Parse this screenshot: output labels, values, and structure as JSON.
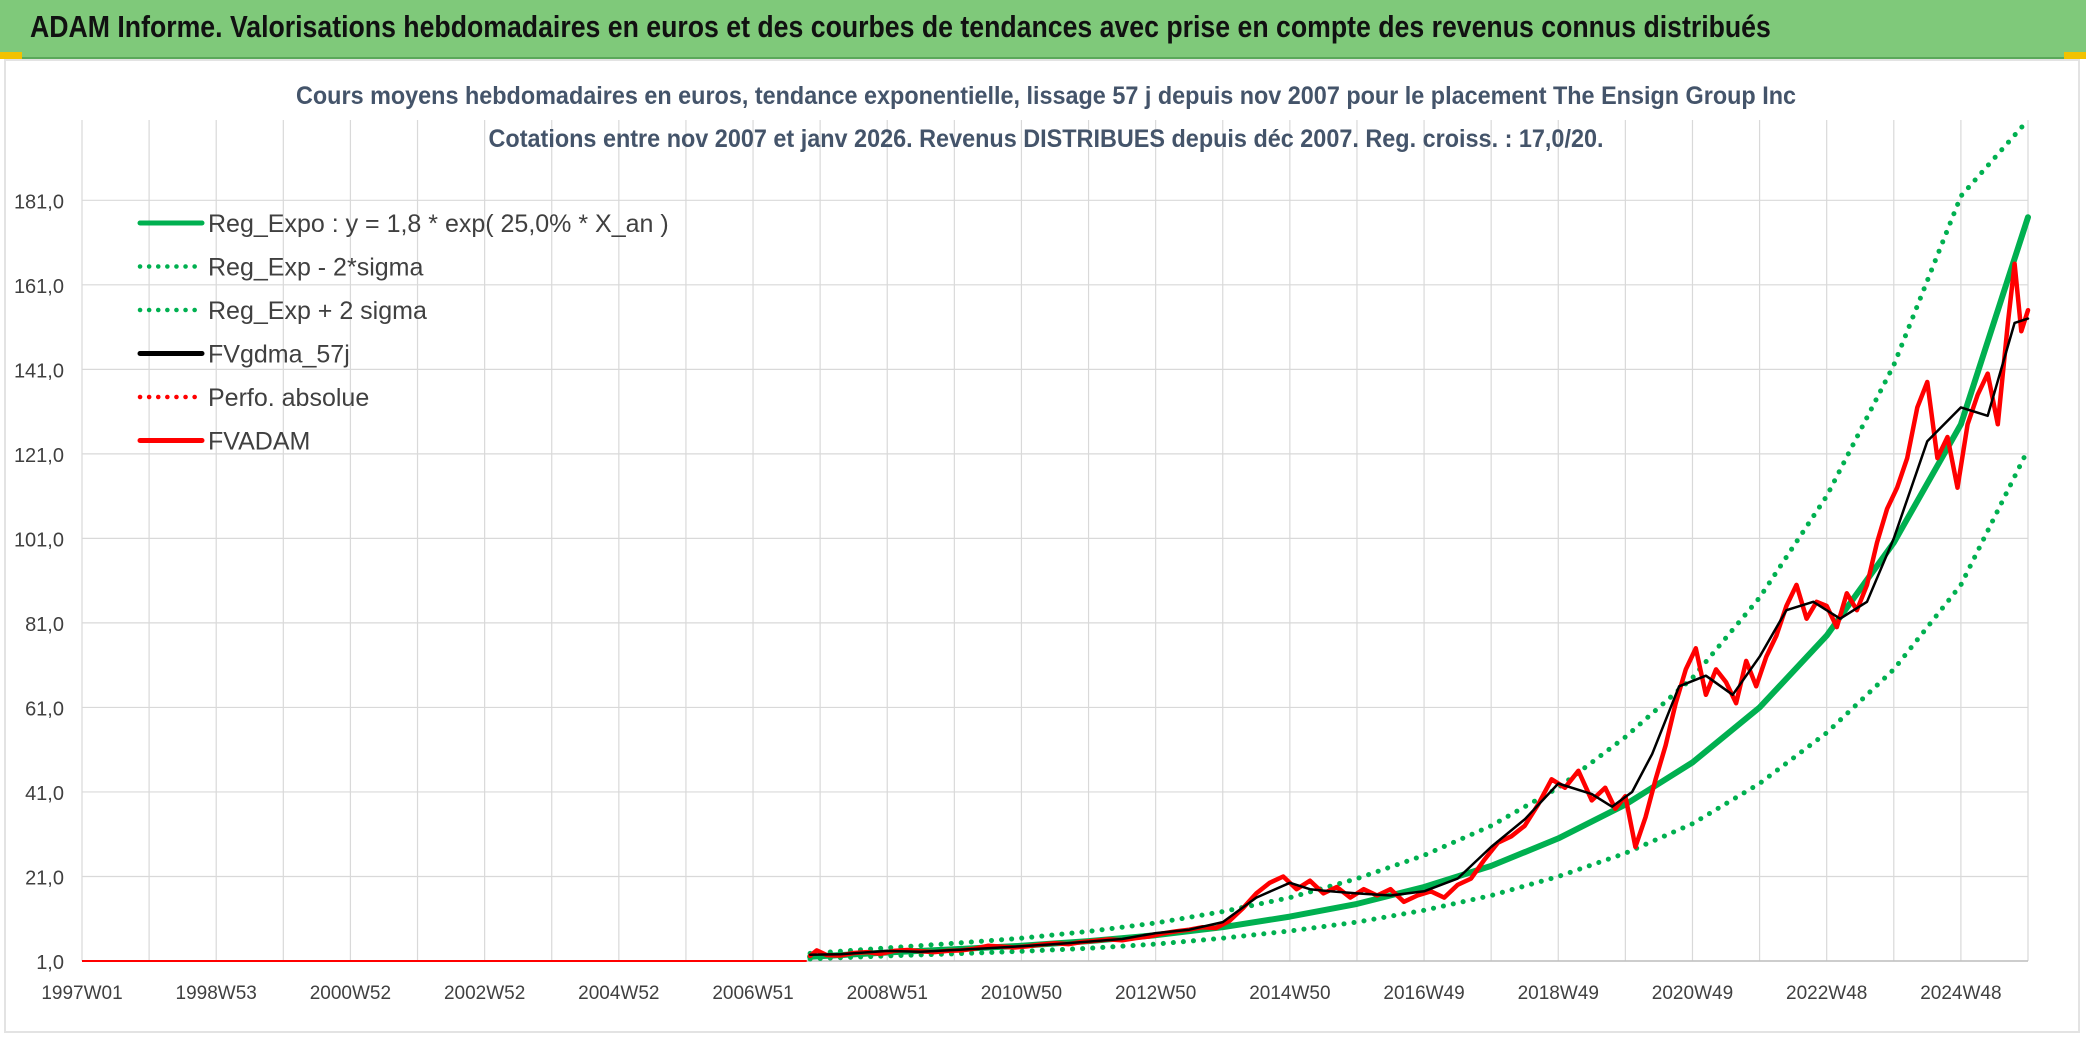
{
  "header": {
    "title": "ADAM Informe. Valorisations hebdomadaires en euros et des courbes de tendances avec prise en compte des revenus connus distribués"
  },
  "colors": {
    "banner_bg": "#7fc97a",
    "regression": "#00b050",
    "smoothed": "#000000",
    "adam": "#ff0000",
    "grid": "#d9d9d9"
  },
  "chart_data": {
    "type": "line",
    "title": "Cours moyens hebdomadaires en euros, tendance exponentielle, lissage 57 j depuis nov 2007 pour le placement The Ensign Group Inc",
    "subtitle": "Cotations entre nov 2007 et janv 2026. Revenus DISTRIBUES depuis déc 2007. Reg. croiss. : 17,0/20.",
    "xlabel": "",
    "ylabel": "",
    "x_tick_labels": [
      "1997W01",
      "1998W53",
      "2000W52",
      "2002W52",
      "2004W52",
      "2006W51",
      "2008W51",
      "2010W50",
      "2012W50",
      "2014W50",
      "2016W49",
      "2018W49",
      "2020W49",
      "2022W48",
      "2024W48"
    ],
    "x_range": [
      1997.0,
      2026.0
    ],
    "y_ticks": [
      1,
      21,
      41,
      61,
      81,
      101,
      121,
      141,
      161,
      181
    ],
    "y_tick_labels": [
      "1,0",
      "21,0",
      "41,0",
      "61,0",
      "81,0",
      "101,0",
      "121,0",
      "141,0",
      "161,0",
      "181,0"
    ],
    "ylim": [
      1,
      200
    ],
    "grid": true,
    "legend_position": "top-left",
    "legend": [
      {
        "label": "Reg_Expo : y = 1,8 * exp( 25,0% *  X_an )",
        "color": "#00b050",
        "style": "solid"
      },
      {
        "label": "Reg_Exp - 2*sigma",
        "color": "#00b050",
        "style": "dotted"
      },
      {
        "label": "Reg_Exp + 2 sigma",
        "color": "#00b050",
        "style": "dotted"
      },
      {
        "label": "FVgdma_57j",
        "color": "#000000",
        "style": "solid"
      },
      {
        "label": "Perfo. absolue",
        "color": "#ff0000",
        "style": "dotted"
      },
      {
        "label": "FVADAM",
        "color": "#ff0000",
        "style": "solid"
      }
    ],
    "series": [
      {
        "name": "Reg_Expo : y = 1,8 * exp( 25,0% *  X_an )",
        "style": "solid",
        "color": "#00b050",
        "x": [
          2007.85,
          2009,
          2010,
          2011,
          2012,
          2013,
          2014,
          2015,
          2016,
          2017,
          2018,
          2019,
          2020,
          2021,
          2022,
          2023,
          2024,
          2025,
          2026.0
        ],
        "values": [
          2.0,
          3.0,
          3.8,
          4.6,
          5.7,
          7.1,
          9.0,
          11.5,
          14.5,
          18.5,
          23.5,
          30,
          38,
          48,
          61,
          78,
          100,
          128,
          177
        ]
      },
      {
        "name": "Reg_Exp - 2*sigma",
        "style": "dotted",
        "color": "#00b050",
        "x": [
          2007.85,
          2009,
          2010,
          2011,
          2012,
          2013,
          2014,
          2015,
          2016,
          2017,
          2018,
          2019,
          2020,
          2021,
          2022,
          2023,
          2024,
          2025,
          2026.0
        ],
        "values": [
          1.5,
          2.2,
          2.7,
          3.3,
          4.0,
          5.0,
          6.4,
          8.1,
          10.2,
          13.0,
          16.5,
          21,
          26.5,
          33.5,
          43,
          55,
          70,
          90,
          122
        ]
      },
      {
        "name": "Reg_Exp + 2 sigma",
        "style": "dotted",
        "color": "#00b050",
        "x": [
          2007.85,
          2009,
          2010,
          2011,
          2012,
          2013,
          2014,
          2015,
          2016,
          2017,
          2018,
          2019,
          2020,
          2021,
          2022,
          2023,
          2024,
          2025,
          2026.0
        ],
        "values": [
          2.8,
          4.1,
          5.2,
          6.4,
          8.0,
          10.0,
          12.7,
          16.0,
          20.5,
          26,
          33,
          42,
          54,
          68,
          87,
          111,
          142,
          182,
          200
        ]
      },
      {
        "name": "FVgdma_57j",
        "style": "solid",
        "color": "#000000",
        "x": [
          2007.85,
          2008.3,
          2009,
          2009.5,
          2010,
          2010.5,
          2011,
          2011.5,
          2012,
          2012.5,
          2013,
          2013.5,
          2014,
          2014.5,
          2015,
          2015.3,
          2015.6,
          2016,
          2016.5,
          2017,
          2017.5,
          2018,
          2018.5,
          2019,
          2019.5,
          2019.8,
          2020.1,
          2020.4,
          2020.8,
          2021.2,
          2021.6,
          2022,
          2022.4,
          2022.8,
          2023.2,
          2023.6,
          2024,
          2024.5,
          2025,
          2025.4,
          2025.8,
          2026.0
        ],
        "values": [
          2.5,
          2.6,
          3.4,
          3.2,
          3.6,
          4.0,
          4.5,
          5.0,
          5.6,
          6.2,
          7.6,
          8.4,
          10.2,
          16.0,
          19.5,
          18.0,
          17.5,
          17.0,
          16.5,
          17.5,
          20.5,
          28.0,
          34.5,
          43.0,
          40.5,
          37.5,
          41.0,
          50.0,
          66.0,
          68.5,
          64.0,
          73.0,
          84.0,
          86.0,
          82.0,
          86.0,
          101.0,
          124.0,
          132.0,
          130.0,
          152.0,
          153.0
        ]
      },
      {
        "name": "Perfo. absolue",
        "style": "dotted",
        "color": "#ff0000",
        "x": [
          1997.0,
          2007.8
        ],
        "values": [
          1.0,
          1.0
        ]
      },
      {
        "name": "FVADAM",
        "style": "solid",
        "color": "#ff0000",
        "x": [
          2007.85,
          2007.95,
          2008.1,
          2008.3,
          2008.5,
          2008.7,
          2008.9,
          2009.1,
          2009.3,
          2009.5,
          2009.7,
          2009.9,
          2010.1,
          2010.3,
          2010.5,
          2010.7,
          2010.9,
          2011.1,
          2011.3,
          2011.5,
          2011.7,
          2011.9,
          2012.1,
          2012.3,
          2012.5,
          2012.7,
          2012.9,
          2013.1,
          2013.3,
          2013.5,
          2013.7,
          2013.9,
          2014.1,
          2014.3,
          2014.5,
          2014.7,
          2014.9,
          2015.1,
          2015.3,
          2015.5,
          2015.7,
          2015.9,
          2016.1,
          2016.3,
          2016.5,
          2016.7,
          2016.9,
          2017.1,
          2017.3,
          2017.5,
          2017.7,
          2017.9,
          2018.1,
          2018.3,
          2018.5,
          2018.7,
          2018.9,
          2019.1,
          2019.3,
          2019.5,
          2019.7,
          2019.85,
          2020.0,
          2020.15,
          2020.3,
          2020.45,
          2020.6,
          2020.75,
          2020.9,
          2021.05,
          2021.2,
          2021.35,
          2021.5,
          2021.65,
          2021.8,
          2021.95,
          2022.1,
          2022.25,
          2022.4,
          2022.55,
          2022.7,
          2022.85,
          2023.0,
          2023.15,
          2023.3,
          2023.45,
          2023.6,
          2023.75,
          2023.9,
          2024.05,
          2024.2,
          2024.35,
          2024.5,
          2024.65,
          2024.8,
          2024.95,
          2025.1,
          2025.25,
          2025.4,
          2025.55,
          2025.7,
          2025.8,
          2025.9,
          2026.0
        ],
        "values": [
          2.2,
          3.5,
          2.4,
          2.3,
          2.9,
          3.1,
          2.7,
          3.4,
          3.6,
          3.3,
          3.1,
          3.4,
          3.5,
          3.9,
          4.6,
          4.4,
          4.2,
          4.5,
          4.9,
          5.2,
          5.0,
          5.5,
          5.8,
          6.1,
          5.9,
          6.4,
          6.8,
          7.5,
          8.0,
          8.4,
          9.0,
          8.8,
          10.5,
          13.5,
          17.0,
          19.5,
          21.0,
          18.0,
          20.0,
          17.0,
          18.5,
          16.0,
          18.0,
          16.5,
          18.0,
          15.0,
          16.5,
          17.5,
          16.0,
          19.0,
          20.5,
          25.0,
          29.0,
          30.5,
          33.0,
          38.0,
          44.0,
          42.0,
          46.0,
          39.0,
          42.0,
          37.0,
          40.0,
          28.0,
          35.0,
          44.0,
          52.0,
          62.0,
          70.0,
          75.0,
          64.0,
          70.0,
          67.0,
          62.0,
          72.0,
          66.0,
          73.0,
          78.0,
          85.0,
          90.0,
          82.0,
          86.0,
          85.0,
          80.0,
          88.0,
          84.0,
          90.0,
          100.0,
          108.0,
          113.0,
          120.0,
          132.0,
          138.0,
          120.0,
          125.0,
          113.0,
          128.0,
          135.0,
          140.0,
          128.0,
          152.0,
          166.0,
          150.0,
          155.0
        ]
      }
    ]
  }
}
